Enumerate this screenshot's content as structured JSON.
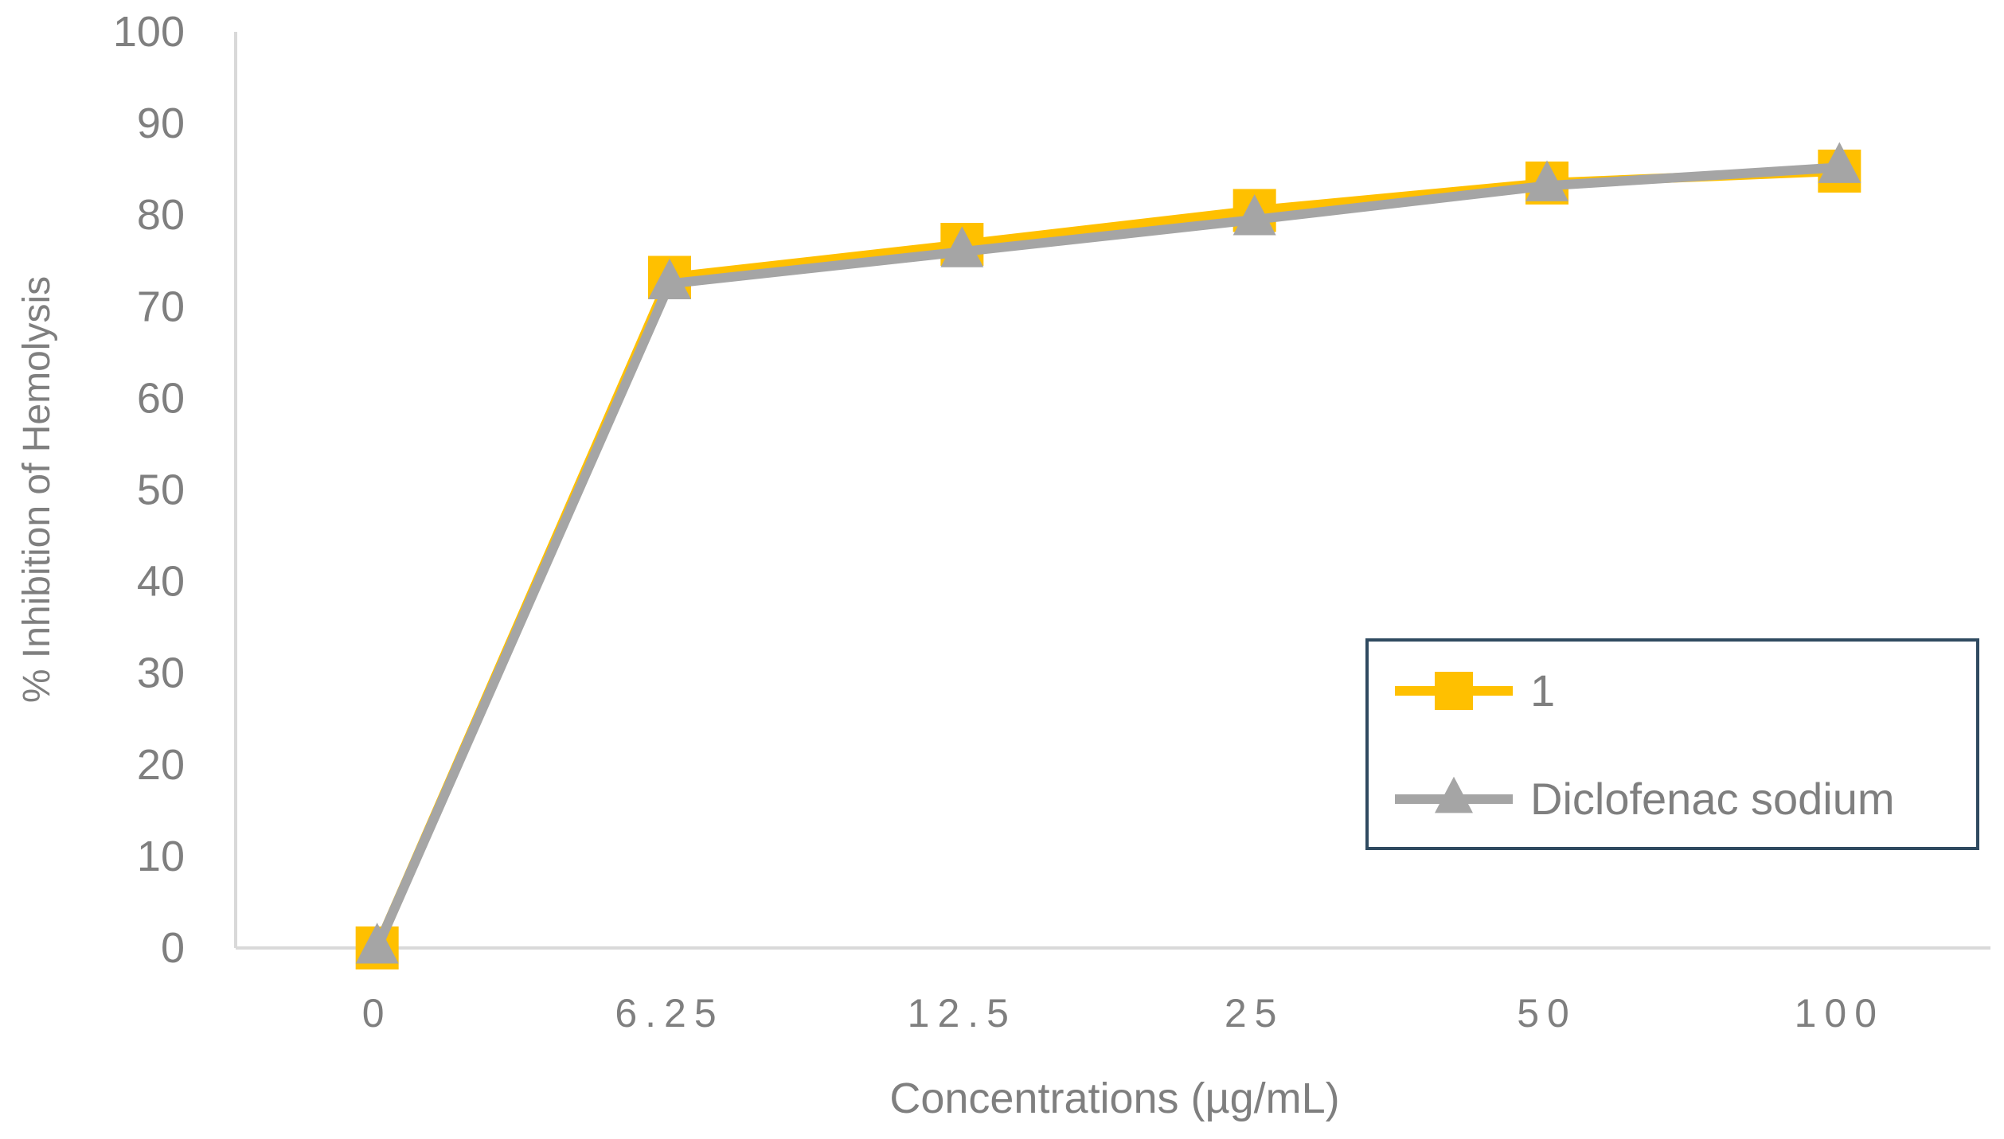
{
  "chart_data": {
    "type": "line",
    "categories": [
      "0",
      "6.25",
      "12.5",
      "25",
      "50",
      "100"
    ],
    "series": [
      {
        "name": "1",
        "values": [
          0,
          73.2,
          76.8,
          80.5,
          83.5,
          84.8
        ],
        "color": "#ffc000",
        "marker": "square"
      },
      {
        "name": "Diclofenac sodium",
        "values": [
          0,
          72.5,
          76.0,
          79.5,
          83.2,
          85.2
        ],
        "color": "#a5a5a5",
        "marker": "triangle"
      }
    ],
    "xlabel": "Concentrations (µg/mL)",
    "ylabel": "% Inhibition of Hemolysis",
    "ylim": [
      0,
      100
    ],
    "yticks": [
      "0",
      "10",
      "20",
      "30",
      "40",
      "50",
      "60",
      "70",
      "80",
      "90",
      "100"
    ],
    "grid": false,
    "legend_position": "bottom-right",
    "colors": {
      "axis": "#d9d9d9",
      "text": "#7f7f7f",
      "legend_border": "#2f4a60"
    }
  }
}
